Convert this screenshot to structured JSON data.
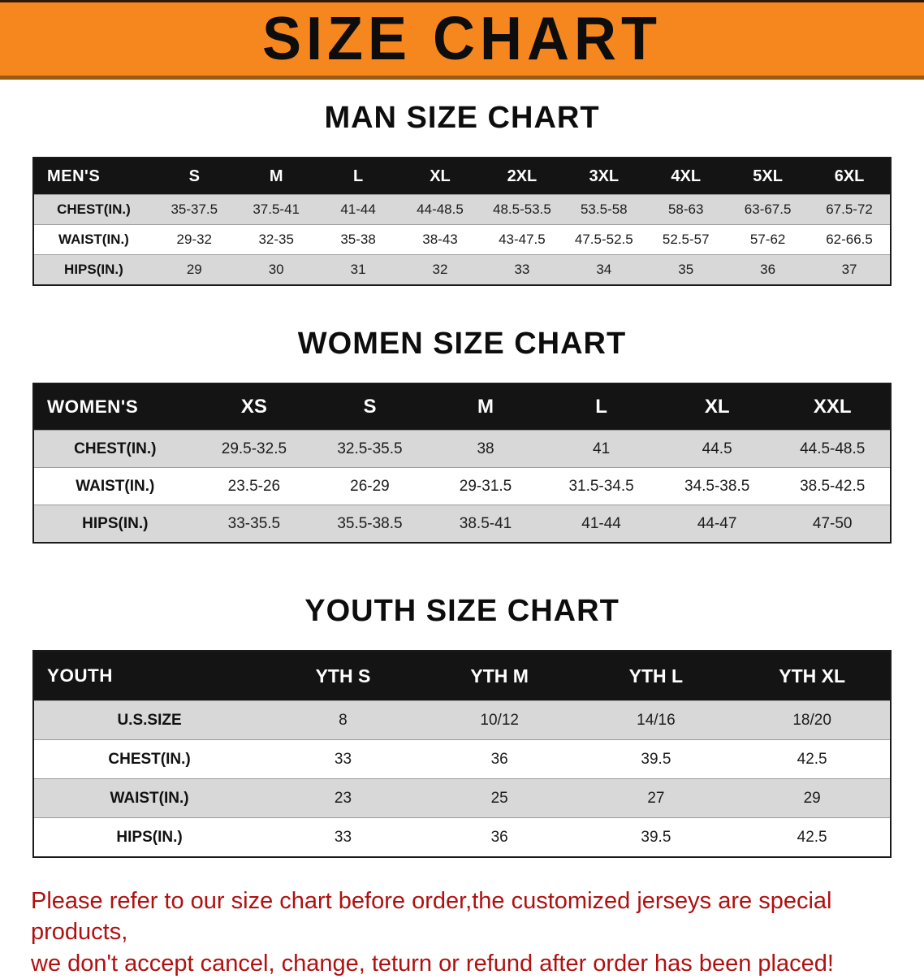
{
  "banner": {
    "title": "SIZE CHART",
    "bg_color": "#f6871f",
    "text_color": "#0d0d0d"
  },
  "sections": [
    {
      "heading": "MAN SIZE CHART",
      "table": {
        "header": [
          "MEN'S",
          "S",
          "M",
          "L",
          "XL",
          "2XL",
          "3XL",
          "4XL",
          "5XL",
          "6XL"
        ],
        "rows": [
          {
            "label": "CHEST(IN.)",
            "values": [
              "35-37.5",
              "37.5-41",
              "41-44",
              "44-48.5",
              "48.5-53.5",
              "53.5-58",
              "58-63",
              "63-67.5",
              "67.5-72"
            ]
          },
          {
            "label": "WAIST(IN.)",
            "values": [
              "29-32",
              "32-35",
              "35-38",
              "38-43",
              "43-47.5",
              "47.5-52.5",
              "52.5-57",
              "57-62",
              "62-66.5"
            ]
          },
          {
            "label": "HIPS(IN.)",
            "values": [
              "29",
              "30",
              "31",
              "32",
              "33",
              "34",
              "35",
              "36",
              "37"
            ]
          }
        ]
      }
    },
    {
      "heading": "WOMEN SIZE CHART",
      "table": {
        "header": [
          "WOMEN'S",
          "XS",
          "S",
          "M",
          "L",
          "XL",
          "XXL"
        ],
        "rows": [
          {
            "label": "CHEST(IN.)",
            "values": [
              "29.5-32.5",
              "32.5-35.5",
              "38",
              "41",
              "44.5",
              "44.5-48.5"
            ]
          },
          {
            "label": "WAIST(IN.)",
            "values": [
              "23.5-26",
              "26-29",
              "29-31.5",
              "31.5-34.5",
              "34.5-38.5",
              "38.5-42.5"
            ]
          },
          {
            "label": "HIPS(IN.)",
            "values": [
              "33-35.5",
              "35.5-38.5",
              "38.5-41",
              "41-44",
              "44-47",
              "47-50"
            ]
          }
        ]
      }
    },
    {
      "heading": "YOUTH SIZE CHART",
      "table": {
        "header": [
          "YOUTH",
          "YTH S",
          "YTH M",
          "YTH L",
          "YTH XL"
        ],
        "rows": [
          {
            "label": "U.S.SIZE",
            "values": [
              "8",
              "10/12",
              "14/16",
              "18/20"
            ]
          },
          {
            "label": "CHEST(IN.)",
            "values": [
              "33",
              "36",
              "39.5",
              "42.5"
            ]
          },
          {
            "label": "WAIST(IN.)",
            "values": [
              "23",
              "25",
              "27",
              "29"
            ]
          },
          {
            "label": "HIPS(IN.)",
            "values": [
              "33",
              "36",
              "39.5",
              "42.5"
            ]
          }
        ]
      }
    }
  ],
  "disclaimer": {
    "line1": "Please refer to our size chart before order,the customized jerseys are special products,",
    "line2": "we don't accept cancel, change, teturn or refund after order has been placed!",
    "color": "#b01010"
  }
}
